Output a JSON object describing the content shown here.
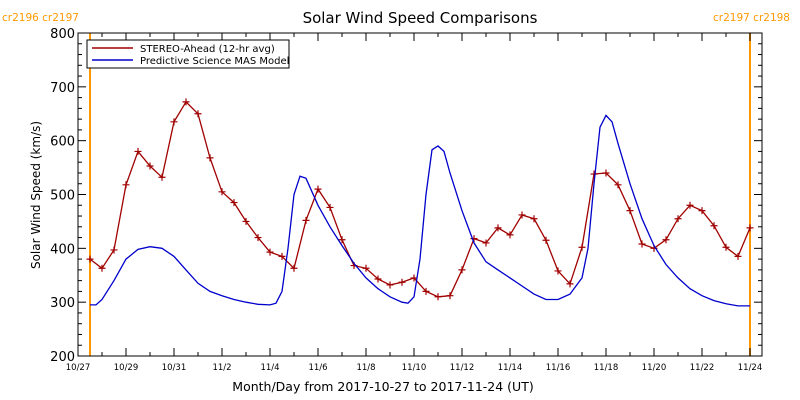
{
  "chart_data": {
    "type": "line",
    "title": "Solar Wind Speed Comparisons",
    "xlabel": "Month/Day from 2017-10-27 to 2017-11-24 (UT)",
    "ylabel": "Solar Wind Speed (km/s)",
    "xlim": [
      "2017-10-27",
      "2017-11-24"
    ],
    "ylim": [
      200,
      800
    ],
    "y_ticks": [
      200,
      300,
      400,
      500,
      600,
      700,
      800
    ],
    "x_ticks": [
      {
        "date": "2017-10-27",
        "label": "10/27"
      },
      {
        "date": "2017-10-29",
        "label": "10/29"
      },
      {
        "date": "2017-10-31",
        "label": "10/31"
      },
      {
        "date": "2017-11-02",
        "label": "11/2"
      },
      {
        "date": "2017-11-04",
        "label": "11/4"
      },
      {
        "date": "2017-11-06",
        "label": "11/6"
      },
      {
        "date": "2017-11-08",
        "label": "11/8"
      },
      {
        "date": "2017-11-10",
        "label": "11/10"
      },
      {
        "date": "2017-11-12",
        "label": "11/12"
      },
      {
        "date": "2017-11-14",
        "label": "11/14"
      },
      {
        "date": "2017-11-16",
        "label": "11/16"
      },
      {
        "date": "2017-11-18",
        "label": "11/18"
      },
      {
        "date": "2017-11-20",
        "label": "11/20"
      },
      {
        "date": "2017-11-22",
        "label": "11/22"
      },
      {
        "date": "2017-11-24",
        "label": "11/24"
      }
    ],
    "legend_position": "top-left",
    "grid": false,
    "series": [
      {
        "name": "STEREO-Ahead (12-hr avg)",
        "color": "#a00000",
        "marker": "plus",
        "points": [
          [
            "2017-10-27T12:00",
            380
          ],
          [
            "2017-10-28T00:00",
            363
          ],
          [
            "2017-10-28T12:00",
            397
          ],
          [
            "2017-10-29T00:00",
            518
          ],
          [
            "2017-10-29T12:00",
            580
          ],
          [
            "2017-10-30T00:00",
            553
          ],
          [
            "2017-10-30T12:00",
            532
          ],
          [
            "2017-10-31T00:00",
            635
          ],
          [
            "2017-10-31T12:00",
            672
          ],
          [
            "2017-11-01T00:00",
            650
          ],
          [
            "2017-11-01T12:00",
            568
          ],
          [
            "2017-11-02T00:00",
            505
          ],
          [
            "2017-11-02T12:00",
            485
          ],
          [
            "2017-11-03T00:00",
            450
          ],
          [
            "2017-11-03T12:00",
            420
          ],
          [
            "2017-11-04T00:00",
            393
          ],
          [
            "2017-11-04T12:00",
            385
          ],
          [
            "2017-11-05T00:00",
            363
          ],
          [
            "2017-11-05T12:00",
            452
          ],
          [
            "2017-11-06T00:00",
            510
          ],
          [
            "2017-11-06T12:00",
            476
          ],
          [
            "2017-11-07T00:00",
            416
          ],
          [
            "2017-11-07T12:00",
            368
          ],
          [
            "2017-11-08T00:00",
            363
          ],
          [
            "2017-11-08T12:00",
            343
          ],
          [
            "2017-11-09T00:00",
            332
          ],
          [
            "2017-11-09T12:00",
            337
          ],
          [
            "2017-11-10T00:00",
            345
          ],
          [
            "2017-11-10T12:00",
            320
          ],
          [
            "2017-11-11T00:00",
            310
          ],
          [
            "2017-11-11T12:00",
            312
          ],
          [
            "2017-11-12T00:00",
            360
          ],
          [
            "2017-11-12T12:00",
            418
          ],
          [
            "2017-11-13T00:00",
            410
          ],
          [
            "2017-11-13T12:00",
            438
          ],
          [
            "2017-11-14T00:00",
            425
          ],
          [
            "2017-11-14T12:00",
            462
          ],
          [
            "2017-11-15T00:00",
            455
          ],
          [
            "2017-11-15T12:00",
            415
          ],
          [
            "2017-11-16T00:00",
            358
          ],
          [
            "2017-11-16T12:00",
            334
          ],
          [
            "2017-11-17T00:00",
            402
          ],
          [
            "2017-11-17T12:00",
            538
          ],
          [
            "2017-11-18T00:00",
            540
          ],
          [
            "2017-11-18T12:00",
            518
          ],
          [
            "2017-11-19T00:00",
            470
          ],
          [
            "2017-11-19T12:00",
            408
          ],
          [
            "2017-11-20T00:00",
            400
          ],
          [
            "2017-11-20T12:00",
            416
          ],
          [
            "2017-11-21T00:00",
            455
          ],
          [
            "2017-11-21T12:00",
            480
          ],
          [
            "2017-11-22T00:00",
            470
          ],
          [
            "2017-11-22T12:00",
            442
          ],
          [
            "2017-11-23T00:00",
            402
          ],
          [
            "2017-11-23T12:00",
            385
          ],
          [
            "2017-11-24T00:00",
            438
          ]
        ]
      },
      {
        "name": "Predictive Science MAS Model",
        "color": "#0000cc",
        "marker": "none",
        "points": [
          [
            "2017-10-27T12:00",
            295
          ],
          [
            "2017-10-27T18:00",
            295
          ],
          [
            "2017-10-28T00:00",
            305
          ],
          [
            "2017-10-28T12:00",
            340
          ],
          [
            "2017-10-29T00:00",
            380
          ],
          [
            "2017-10-29T12:00",
            398
          ],
          [
            "2017-10-30T00:00",
            403
          ],
          [
            "2017-10-30T12:00",
            400
          ],
          [
            "2017-10-31T00:00",
            385
          ],
          [
            "2017-10-31T12:00",
            360
          ],
          [
            "2017-11-01T00:00",
            335
          ],
          [
            "2017-11-01T12:00",
            320
          ],
          [
            "2017-11-02T00:00",
            312
          ],
          [
            "2017-11-02T12:00",
            305
          ],
          [
            "2017-11-03T00:00",
            300
          ],
          [
            "2017-11-03T12:00",
            296
          ],
          [
            "2017-11-04T00:00",
            295
          ],
          [
            "2017-11-04T06:00",
            298
          ],
          [
            "2017-11-04T12:00",
            320
          ],
          [
            "2017-11-04T18:00",
            400
          ],
          [
            "2017-11-05T00:00",
            500
          ],
          [
            "2017-11-05T06:00",
            534
          ],
          [
            "2017-11-05T12:00",
            530
          ],
          [
            "2017-11-05T18:00",
            505
          ],
          [
            "2017-11-06T00:00",
            480
          ],
          [
            "2017-11-06T12:00",
            440
          ],
          [
            "2017-11-07T00:00",
            405
          ],
          [
            "2017-11-07T12:00",
            372
          ],
          [
            "2017-11-08T00:00",
            345
          ],
          [
            "2017-11-08T12:00",
            325
          ],
          [
            "2017-11-09T00:00",
            310
          ],
          [
            "2017-11-09T12:00",
            300
          ],
          [
            "2017-11-09T18:00",
            298
          ],
          [
            "2017-11-10T00:00",
            310
          ],
          [
            "2017-11-10T06:00",
            380
          ],
          [
            "2017-11-10T12:00",
            500
          ],
          [
            "2017-11-10T18:00",
            583
          ],
          [
            "2017-11-11T00:00",
            590
          ],
          [
            "2017-11-11T06:00",
            580
          ],
          [
            "2017-11-11T12:00",
            540
          ],
          [
            "2017-11-12T00:00",
            470
          ],
          [
            "2017-11-12T12:00",
            410
          ],
          [
            "2017-11-13T00:00",
            375
          ],
          [
            "2017-11-13T12:00",
            360
          ],
          [
            "2017-11-14T00:00",
            345
          ],
          [
            "2017-11-14T12:00",
            330
          ],
          [
            "2017-11-15T00:00",
            315
          ],
          [
            "2017-11-15T12:00",
            305
          ],
          [
            "2017-11-16T00:00",
            305
          ],
          [
            "2017-11-16T12:00",
            315
          ],
          [
            "2017-11-17T00:00",
            345
          ],
          [
            "2017-11-17T06:00",
            400
          ],
          [
            "2017-11-17T12:00",
            520
          ],
          [
            "2017-11-17T18:00",
            625
          ],
          [
            "2017-11-18T00:00",
            647
          ],
          [
            "2017-11-18T06:00",
            635
          ],
          [
            "2017-11-18T12:00",
            595
          ],
          [
            "2017-11-19T00:00",
            520
          ],
          [
            "2017-11-19T12:00",
            455
          ],
          [
            "2017-11-20T00:00",
            405
          ],
          [
            "2017-11-20T12:00",
            370
          ],
          [
            "2017-11-21T00:00",
            345
          ],
          [
            "2017-11-21T12:00",
            325
          ],
          [
            "2017-11-22T00:00",
            312
          ],
          [
            "2017-11-22T12:00",
            303
          ],
          [
            "2017-11-23T00:00",
            297
          ],
          [
            "2017-11-23T12:00",
            293
          ],
          [
            "2017-11-24T00:00",
            293
          ]
        ]
      }
    ],
    "rotation_markers": {
      "color": "#ff9900",
      "lines": [
        {
          "date": "2017-10-27T12:00",
          "label": "cr2196 cr2197",
          "label_position": "top-left"
        },
        {
          "date": "2017-11-24T00:00",
          "label": "cr2197 cr2198",
          "label_position": "top-right"
        }
      ]
    }
  }
}
